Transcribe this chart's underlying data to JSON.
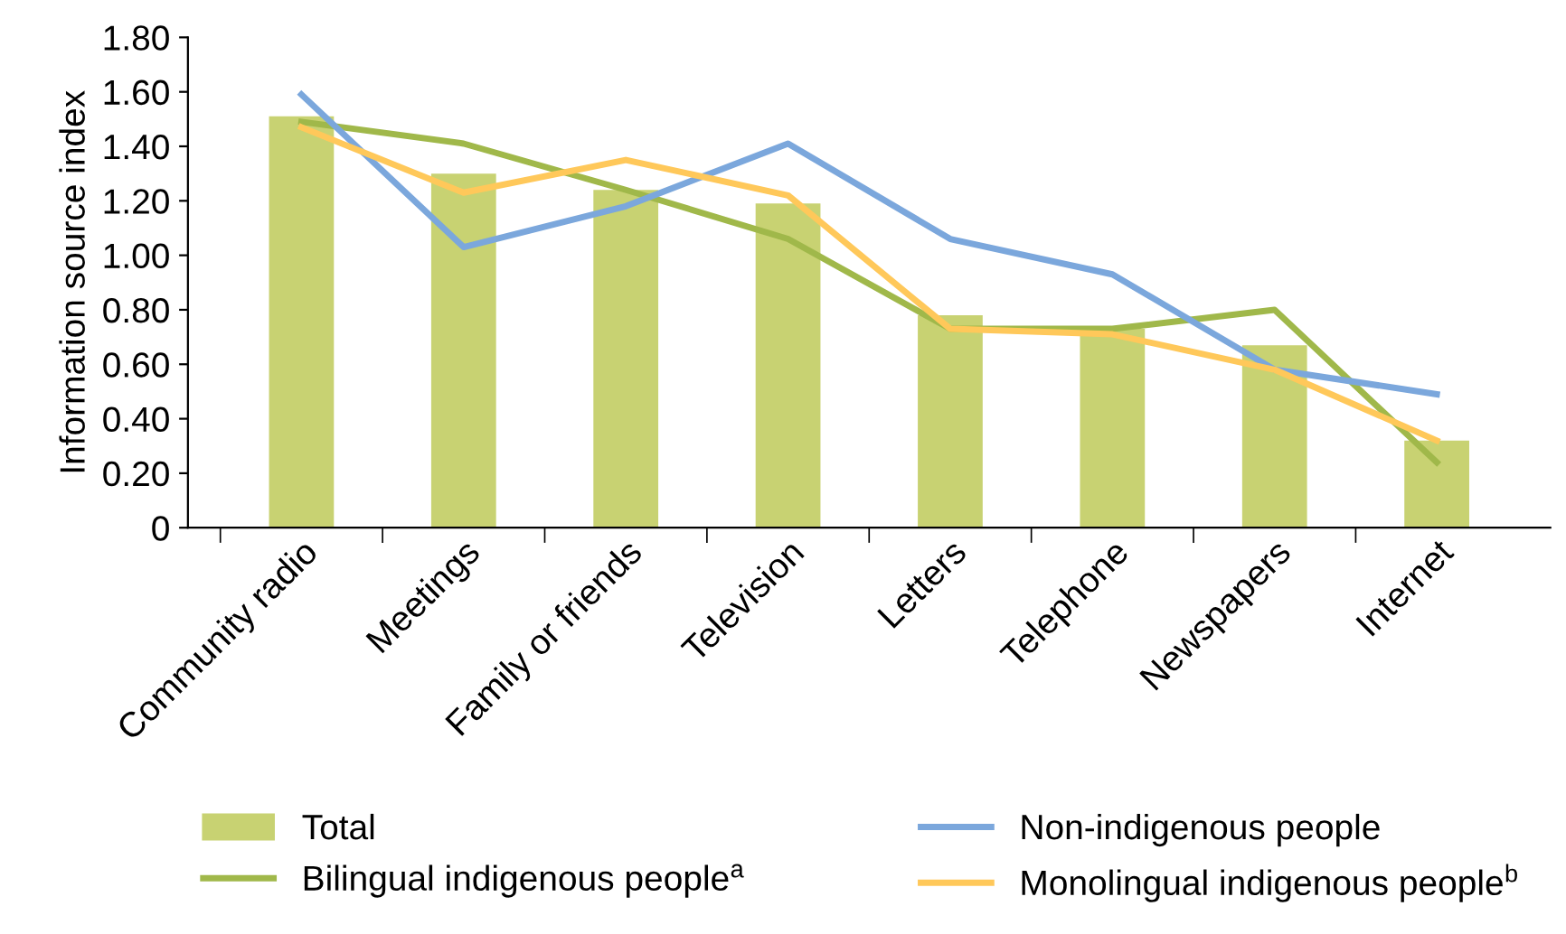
{
  "chart_data": {
    "type": "bar",
    "ylabel": "Information source index",
    "categories": [
      "Community radio",
      "Meetings",
      "Family or friends",
      "Television",
      "Letters",
      "Telephone",
      "Newspapers",
      "Internet"
    ],
    "series": [
      {
        "name": "Total",
        "color": "#c8d272",
        "values": [
          1.51,
          1.3,
          1.24,
          1.19,
          0.78,
          0.73,
          0.67,
          0.32
        ]
      },
      {
        "name": "Bilingual indigenous people$^{a}$",
        "type": "line",
        "color": "#a0b84a",
        "values": [
          1.49,
          1.41,
          1.24,
          1.06,
          0.73,
          0.73,
          0.8,
          0.24
        ]
      },
      {
        "name": "Non-indigenous people",
        "type": "line",
        "color": "#7ba7dc",
        "values": [
          1.59,
          1.03,
          1.18,
          1.41,
          1.06,
          0.93,
          0.58,
          0.49
        ]
      },
      {
        "name": "Monolingual indigenous people$^{b}$",
        "type": "line",
        "color": "#ffc85a",
        "values": [
          1.47,
          1.23,
          1.35,
          1.22,
          0.73,
          0.71,
          0.58,
          0.32
        ]
      }
    ],
    "ylim": [
      0,
      1.8
    ],
    "yticks": [
      0,
      {
        "value": 0.2,
        "label": "0.20"
      },
      {
        "value": 0.4,
        "label": "0.40"
      },
      {
        "value": 0.6,
        "label": "0.60"
      },
      {
        "value": 0.8,
        "label": "0.80"
      },
      {
        "value": 1.0,
        "label": "1.00"
      },
      {
        "value": 1.2,
        "label": "1.20"
      },
      {
        "value": 1.4,
        "label": "1.40"
      },
      {
        "value": 1.6,
        "label": "1.60"
      },
      {
        "value": 1.8,
        "label": "1.80"
      }
    ],
    "grid": false,
    "legend": "bottom",
    "marker": "none",
    "line_style": "solid"
  }
}
